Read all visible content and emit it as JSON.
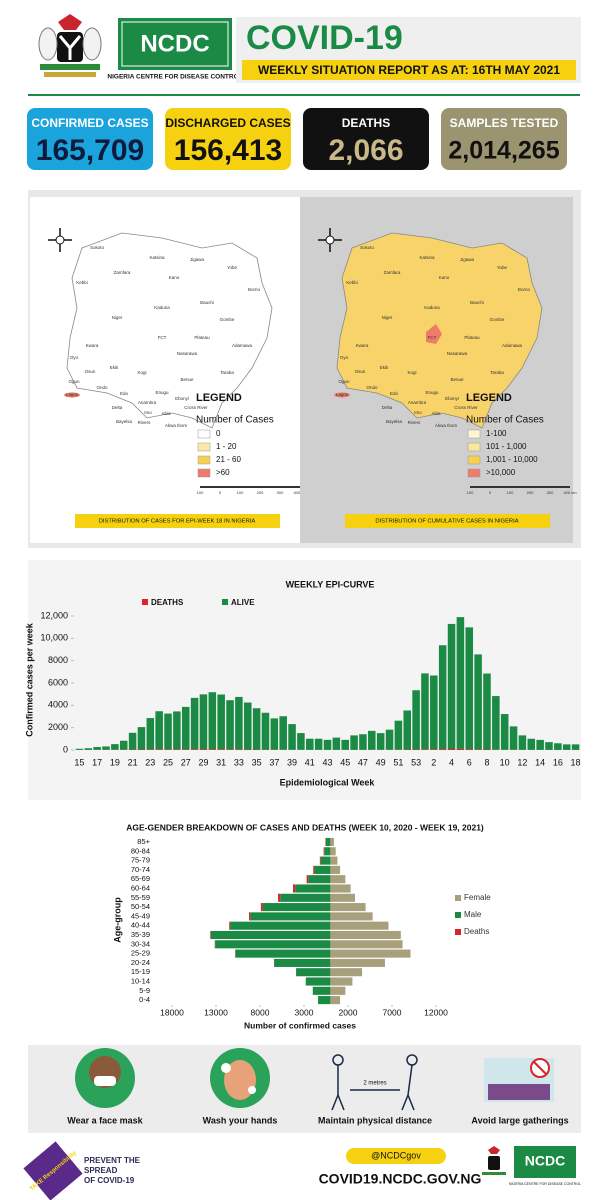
{
  "header": {
    "title": "COVID-19",
    "subtitle": "WEEKLY SITUATION REPORT AS AT: 16TH MAY 2021",
    "logo": "NCDC",
    "organization": "NIGERIA CENTRE FOR DISEASE CONTROL"
  },
  "stats": [
    {
      "label": "CONFIRMED CASES",
      "value": "165,709",
      "color": "#1ba3dc",
      "label_color": "#ffffff",
      "value_color": "#0d1b3e"
    },
    {
      "label": "DISCHARGED CASES",
      "value": "156,413",
      "color": "#f6d10f",
      "label_color": "#111111",
      "value_color": "#111111"
    },
    {
      "label": "DEATHS",
      "value": "2,066",
      "color": "#111111",
      "label_color": "#ffffff",
      "value_color": "#c9b98a"
    },
    {
      "label": "SAMPLES TESTED",
      "value": "2,014,265",
      "color": "#9b9470",
      "label_color": "#ffffff",
      "value_color": "#111111"
    }
  ],
  "maps": {
    "state_labels": [
      "Sokoto",
      "Kebbi",
      "Zamfara",
      "Katsina",
      "Kano",
      "Jigawa",
      "Yobe",
      "Borno",
      "Kaduna",
      "Bauchi",
      "Gombe",
      "Niger",
      "FCT",
      "Plateau",
      "Adamawa",
      "Kwara",
      "Nasarawa",
      "Taraba",
      "Oyo",
      "Osun",
      "Ekiti",
      "Kogi",
      "Benue",
      "Ogun",
      "Ondo",
      "Edo",
      "Enugu",
      "Ebonyi",
      "Lagos",
      "Anambra",
      "Delta",
      "Imo",
      "Abia",
      "Cross River",
      "Rivers",
      "Bayelsa",
      "Akwa Ibom"
    ],
    "scale_labels": [
      "100",
      "0",
      "100",
      "200",
      "300",
      "400 km"
    ],
    "panels": [
      {
        "fill": "#ffffff",
        "background": "#ffffff",
        "legend_title": "LEGEND",
        "legend_subtitle": "Number of Cases",
        "legend": [
          {
            "label": "0",
            "color": "#ffffff"
          },
          {
            "label": "1 - 20",
            "color": "#fbe8a6"
          },
          {
            "label": "21 - 60",
            "color": "#f5cf52"
          },
          {
            "label": ">60",
            "color": "#ef7c6a"
          }
        ],
        "caption": "DISTRIBUTION OF CASES FOR EPI-WEEK 18 IN NIGERIA"
      },
      {
        "fill": "#f7d36a",
        "background": "#cfcfcf",
        "legend_title": "LEGEND",
        "legend_subtitle": "Number of Cases",
        "legend": [
          {
            "label": "1-100",
            "color": "#fef6d0"
          },
          {
            "label": "101 - 1,000",
            "color": "#fbe6a0"
          },
          {
            "label": "1,001 - 10,000",
            "color": "#f7d050"
          },
          {
            "label": ">10,000",
            "color": "#ef7c6a"
          }
        ],
        "caption": "DISTRIBUTION OF CUMULATIVE CASES IN NIGERIA"
      }
    ]
  },
  "chart_data": [
    {
      "type": "stacked_bar",
      "title": "WEEKLY EPI-CURVE",
      "x_label": "Epidemiological Week",
      "y_label": "Confirmed cases per week",
      "categories": [
        "15",
        null,
        "17",
        null,
        "19",
        null,
        "21",
        null,
        "23",
        null,
        "25",
        null,
        "27",
        null,
        "29",
        null,
        "31",
        null,
        "33",
        null,
        "35",
        null,
        "37",
        null,
        "39",
        null,
        "41",
        null,
        "43",
        null,
        "45",
        null,
        "47",
        null,
        "49",
        null,
        "51",
        null,
        "53",
        null,
        "2",
        null,
        "4",
        null,
        "6",
        null,
        "8",
        null,
        "10",
        null,
        "12",
        null,
        "14",
        null,
        "16",
        null,
        "18"
      ],
      "series": [
        {
          "name": "ALIVE",
          "color": "#1b8a44",
          "values": [
            100,
            150,
            250,
            300,
            500,
            800,
            1500,
            2000,
            2800,
            3400,
            3200,
            3400,
            3800,
            4600,
            4900,
            5100,
            4900,
            4400,
            4700,
            4200,
            3700,
            3300,
            2800,
            3000,
            2300,
            1500,
            1000,
            1000,
            900,
            1100,
            900,
            1300,
            1400,
            1700,
            1500,
            1800,
            2600,
            3500,
            5300,
            6800,
            6600,
            9300,
            11200,
            11800,
            10900,
            8500,
            6800,
            4800,
            3200,
            2100,
            1300,
            1000,
            900,
            700,
            600,
            500,
            500
          ]
        },
        {
          "name": "DEATHS",
          "color": "#d7262b",
          "values": [
            10,
            10,
            15,
            20,
            25,
            30,
            40,
            50,
            60,
            70,
            60,
            55,
            60,
            70,
            80,
            75,
            70,
            60,
            55,
            50,
            40,
            35,
            30,
            25,
            20,
            15,
            10,
            10,
            8,
            10,
            8,
            10,
            12,
            15,
            12,
            20,
            25,
            40,
            50,
            60,
            70,
            80,
            90,
            100,
            80,
            60,
            45,
            30,
            20,
            15,
            10,
            8,
            6,
            5,
            4,
            4,
            4
          ]
        }
      ],
      "ylim": [
        0,
        12500
      ],
      "yticks": [
        0,
        2000,
        4000,
        6000,
        8000,
        {
          "value": 10000,
          "label": "10,000"
        },
        {
          "value": 12000,
          "label": "12,000"
        }
      ]
    },
    {
      "type": "pyramid",
      "title": "AGE-GENDER BREAKDOWN OF CASES AND DEATHS (WEEK 10, 2020 - WEEK 19, 2021)",
      "x_label": "Number of confirmed cases",
      "y_label": "Age-group",
      "categories": [
        "0-4",
        "5-9",
        "10-14",
        "15-19",
        "20-24",
        "25-29",
        "30-34",
        "35-39",
        "40-44",
        "45-49",
        "50-54",
        "55-59",
        "60-64",
        "65-69",
        "70-74",
        "75-79",
        "80-84",
        "85+"
      ],
      "series": [
        {
          "name": "Female",
          "color": "#a8a07c",
          "values": [
            1100,
            1700,
            2500,
            3600,
            6200,
            9100,
            8200,
            8000,
            6600,
            4800,
            4000,
            2800,
            2300,
            1700,
            1100,
            800,
            600,
            400
          ]
        },
        {
          "name": "Male",
          "color": "#1b8a44",
          "values": [
            1400,
            2000,
            2800,
            3900,
            6400,
            10800,
            13100,
            13600,
            11400,
            9100,
            7700,
            5700,
            4000,
            2500,
            1800,
            1100,
            700,
            500
          ]
        },
        {
          "name": "Deaths",
          "color": "#d7262b",
          "values": [
            5,
            3,
            3,
            5,
            10,
            20,
            40,
            60,
            100,
            150,
            200,
            250,
            250,
            200,
            150,
            100,
            70,
            60
          ]
        }
      ],
      "xlim": [
        -18000,
        12000
      ],
      "xticks": [
        {
          "value": -18000,
          "label": "18000"
        },
        {
          "value": -13000,
          "label": "13000"
        },
        {
          "value": -8000,
          "label": "8000"
        },
        {
          "value": -3000,
          "label": "3000"
        },
        2000,
        7000,
        12000
      ]
    }
  ],
  "prevention": [
    "Wear a face mask",
    "Wash your hands",
    "Maintain physical distance",
    "Avoid large gatherings"
  ],
  "distance_label": "2 metres",
  "footer": {
    "badge": "TAKE Responsibility",
    "slogan": [
      "PREVENT THE",
      "SPREAD",
      "OF COVID-19"
    ],
    "handle": "@NCDCgov",
    "website": "COVID19.NCDC.GOV.NG",
    "logo": "NCDC",
    "organization": "NIGERIA CENTRE FOR DISEASE CONTROL"
  }
}
